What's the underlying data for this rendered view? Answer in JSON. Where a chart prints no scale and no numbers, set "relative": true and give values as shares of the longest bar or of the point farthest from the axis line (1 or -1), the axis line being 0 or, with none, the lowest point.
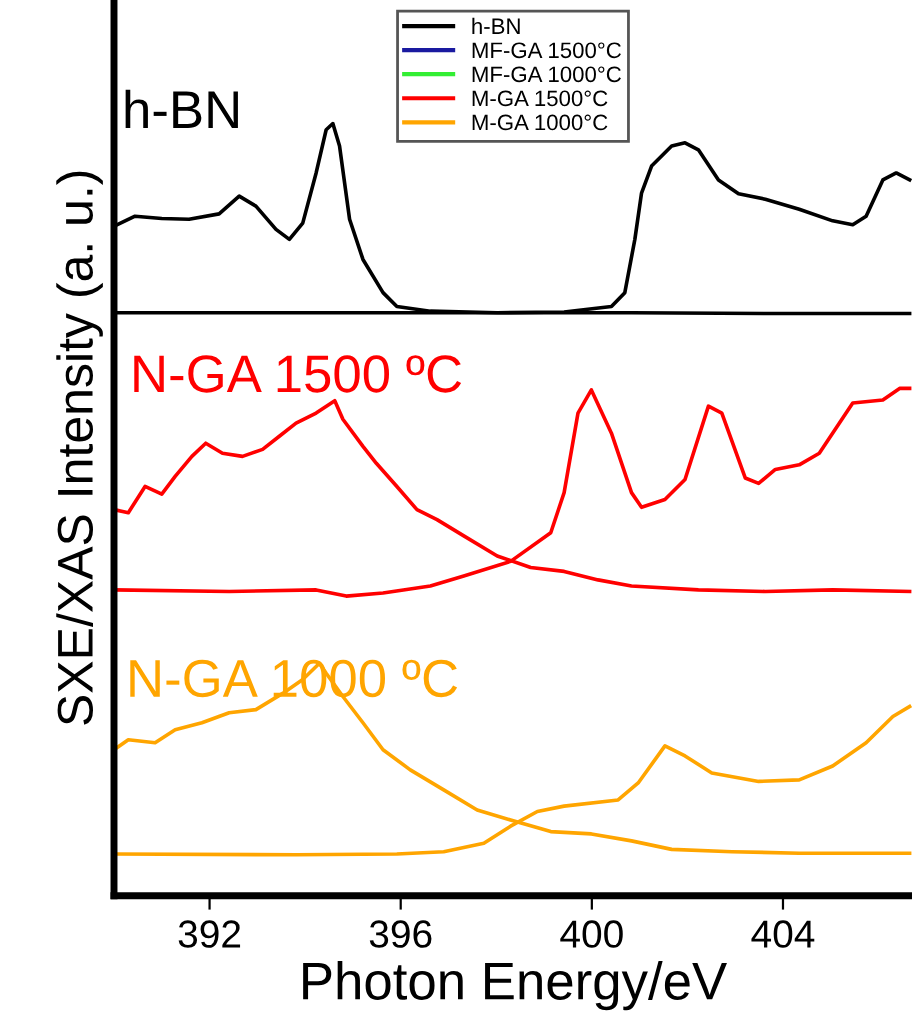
{
  "chart_data": {
    "type": "line",
    "relative": true,
    "xlabel": "Photon Energy/eV",
    "ylabel": "SXE/XAS Intensity (a. u.)",
    "annotations": [
      "h-BN",
      "N-GA 1500 ºC",
      "N-GA 1000 ºC"
    ],
    "xlim": [
      390,
      406.7
    ],
    "xticks": [
      392,
      396,
      400,
      404
    ],
    "legend": "top",
    "series": [
      {
        "name": "h-BN",
        "color": "#000000",
        "x": [
          390.0,
          390.44,
          391.0,
          391.57,
          392.2,
          392.62,
          392.97,
          393.39,
          393.67,
          393.95,
          394.23,
          394.44,
          394.58,
          394.72,
          394.93,
          395.21,
          395.63,
          395.92,
          396.62,
          398.02,
          400.83,
          403.63,
          406.65
        ],
        "values": [
          0.867,
          0.88,
          0.877,
          0.876,
          0.883,
          0.906,
          0.893,
          0.863,
          0.85,
          0.871,
          0.936,
          0.992,
          1.0,
          0.971,
          0.876,
          0.824,
          0.781,
          0.763,
          0.757,
          0.755,
          0.755,
          0.754,
          0.754
        ]
      },
      {
        "color": "#000000",
        "x": [
          390.0,
          396.0,
          398.02,
          399.42,
          400.41,
          400.69,
          400.9,
          401.04,
          401.25,
          401.67,
          401.95,
          402.23,
          402.65,
          403.07,
          403.63,
          404.34,
          405.04,
          405.46,
          405.74,
          406.09,
          406.37,
          406.65
        ],
        "values": [
          0.755,
          0.755,
          0.755,
          0.756,
          0.763,
          0.781,
          0.85,
          0.91,
          0.945,
          0.971,
          0.975,
          0.966,
          0.927,
          0.909,
          0.902,
          0.889,
          0.874,
          0.869,
          0.88,
          0.927,
          0.936,
          0.927
        ]
      },
      {
        "name": "MF-GA 1500°C",
        "color": "#1a1aa0"
      },
      {
        "name": "MF-GA 1000°C",
        "color": "#33ee33"
      },
      {
        "name": "M-GA 1500°C",
        "color": "#ff0000",
        "x": [
          390.0,
          390.3,
          390.65,
          391.0,
          391.28,
          391.63,
          391.92,
          392.27,
          392.69,
          393.11,
          393.46,
          393.81,
          394.23,
          394.62,
          394.79,
          395.21,
          395.49,
          395.92,
          396.34,
          396.76,
          397.32,
          398.02,
          398.72,
          399.42,
          400.13,
          400.83,
          402.23,
          403.63,
          405.04,
          406.65
        ],
        "values": [
          0.5,
          0.496,
          0.53,
          0.52,
          0.543,
          0.569,
          0.586,
          0.573,
          0.569,
          0.578,
          0.595,
          0.612,
          0.625,
          0.641,
          0.617,
          0.582,
          0.56,
          0.53,
          0.5,
          0.487,
          0.466,
          0.44,
          0.425,
          0.42,
          0.409,
          0.401,
          0.396,
          0.394,
          0.396,
          0.394
        ]
      },
      {
        "color": "#ff0000",
        "x": [
          390.0,
          392.41,
          394.23,
          394.86,
          395.63,
          396.62,
          397.32,
          398.3,
          399.14,
          399.42,
          399.71,
          399.99,
          400.41,
          400.83,
          401.04,
          401.53,
          401.95,
          402.44,
          402.72,
          403.21,
          403.49,
          403.84,
          404.34,
          404.76,
          405.46,
          406.09,
          406.44,
          406.65
        ],
        "values": [
          0.396,
          0.394,
          0.396,
          0.388,
          0.392,
          0.401,
          0.414,
          0.433,
          0.47,
          0.522,
          0.625,
          0.655,
          0.599,
          0.522,
          0.503,
          0.513,
          0.539,
          0.634,
          0.625,
          0.541,
          0.534,
          0.552,
          0.558,
          0.573,
          0.638,
          0.642,
          0.657,
          0.657
        ]
      },
      {
        "name": "M-GA 1000°C",
        "color": "#ffa500",
        "x": [
          390.0,
          390.3,
          390.86,
          391.28,
          391.84,
          392.41,
          392.97,
          393.53,
          393.95,
          394.3,
          394.44,
          394.79,
          395.21,
          395.63,
          396.2,
          396.9,
          397.6,
          398.3,
          399.14,
          399.99,
          400.83,
          401.67,
          402.93,
          404.34,
          406.65
        ],
        "values": [
          0.189,
          0.202,
          0.198,
          0.215,
          0.224,
          0.237,
          0.241,
          0.262,
          0.28,
          0.301,
          0.288,
          0.258,
          0.224,
          0.189,
          0.163,
          0.137,
          0.111,
          0.098,
          0.083,
          0.08,
          0.071,
          0.06,
          0.057,
          0.055,
          0.055
        ]
      },
      {
        "color": "#ffa500",
        "x": [
          390.0,
          393.81,
          395.92,
          396.9,
          397.74,
          398.3,
          398.86,
          399.42,
          400.55,
          400.97,
          401.53,
          401.95,
          402.51,
          403.49,
          404.34,
          405.04,
          405.74,
          406.3,
          406.65
        ],
        "values": [
          0.054,
          0.053,
          0.054,
          0.057,
          0.068,
          0.09,
          0.109,
          0.116,
          0.124,
          0.146,
          0.194,
          0.181,
          0.159,
          0.148,
          0.15,
          0.168,
          0.198,
          0.232,
          0.245
        ]
      }
    ]
  }
}
